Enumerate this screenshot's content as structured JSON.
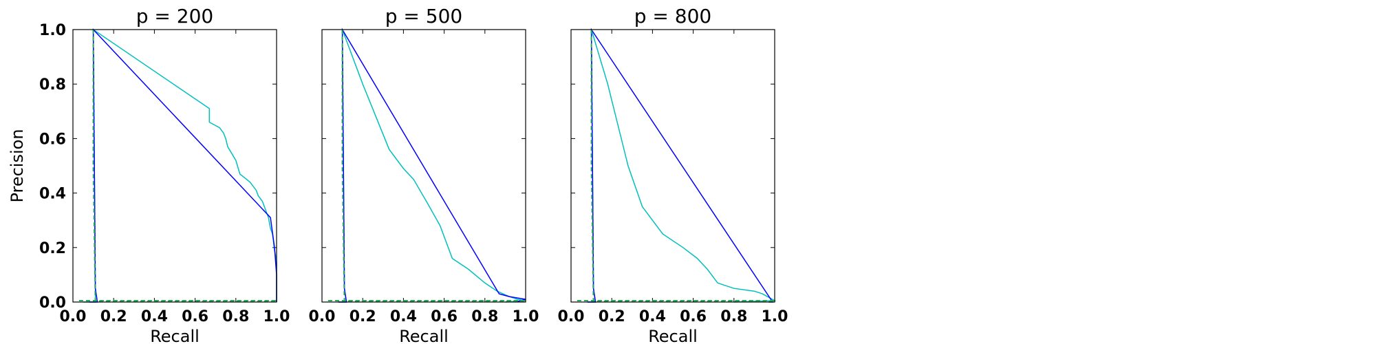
{
  "colors": {
    "cyan": "#00bfbf",
    "blue": "#0000ff",
    "dashed": "#22aa55"
  },
  "chart_data": [
    {
      "type": "line",
      "title": "p = 200",
      "xlabel": "Recall",
      "ylabel": "Precision",
      "xlim": [
        0,
        1
      ],
      "ylim": [
        0,
        1
      ],
      "xticks": [
        "0.0",
        "0.2",
        "0.4",
        "0.6",
        "0.8",
        "1.0"
      ],
      "yticks": [
        "0.0",
        "0.2",
        "0.4",
        "0.6",
        "0.8",
        "1.0"
      ],
      "grid": false,
      "series": [
        {
          "color": "cyan",
          "x": [
            0.05,
            0.11,
            0.11,
            0.1,
            0.67,
            0.67,
            0.72,
            0.74,
            0.75,
            0.76,
            0.8,
            0.82,
            0.87,
            0.9,
            0.91,
            0.93,
            0.95,
            0.96,
            0.97,
            0.98,
            0.99,
            1.0,
            1.0,
            1.0
          ],
          "y": [
            0.0,
            0.0,
            0.05,
            1.0,
            0.71,
            0.66,
            0.64,
            0.62,
            0.6,
            0.57,
            0.52,
            0.47,
            0.44,
            0.41,
            0.39,
            0.37,
            0.33,
            0.31,
            0.27,
            0.25,
            0.19,
            0.15,
            0.05,
            0.0
          ]
        },
        {
          "color": "blue",
          "x": [
            0.08,
            0.12,
            0.11,
            0.1,
            0.97,
            0.99,
            1.0,
            1.0
          ],
          "y": [
            0.0,
            0.0,
            0.05,
            1.0,
            0.31,
            0.2,
            0.1,
            0.0
          ]
        },
        {
          "color": "dashed",
          "dashed": true,
          "x": [
            0.03,
            1.0,
            1.0,
            0.11,
            0.1,
            0.1
          ],
          "y": [
            0.005,
            0.005,
            0.003,
            0.003,
            0.5,
            1.0
          ]
        }
      ]
    },
    {
      "type": "line",
      "title": "p = 500",
      "xlabel": "Recall",
      "xlim": [
        0,
        1
      ],
      "ylim": [
        0,
        1
      ],
      "xticks": [
        "0.0",
        "0.2",
        "0.4",
        "0.6",
        "0.8",
        "1.0"
      ],
      "grid": false,
      "series": [
        {
          "color": "cyan",
          "x": [
            0.08,
            0.12,
            0.11,
            0.1,
            0.2,
            0.33,
            0.4,
            0.45,
            0.52,
            0.58,
            0.64,
            0.72,
            0.8,
            0.86,
            0.92,
            0.96,
            1.0,
            0.9
          ],
          "y": [
            0.0,
            0.0,
            0.05,
            1.0,
            0.8,
            0.56,
            0.49,
            0.45,
            0.36,
            0.28,
            0.16,
            0.12,
            0.07,
            0.04,
            0.02,
            0.01,
            0.005,
            0.0
          ]
        },
        {
          "color": "blue",
          "x": [
            0.08,
            0.12,
            0.11,
            0.1,
            0.87,
            0.92,
            1.0,
            0.95
          ],
          "y": [
            0.0,
            0.0,
            0.05,
            1.0,
            0.03,
            0.02,
            0.01,
            0.0
          ]
        },
        {
          "color": "dashed",
          "dashed": true,
          "x": [
            0.03,
            1.0,
            1.0,
            0.11,
            0.1,
            0.1
          ],
          "y": [
            0.005,
            0.005,
            0.003,
            0.003,
            0.5,
            1.0
          ]
        }
      ]
    },
    {
      "type": "line",
      "title": "p = 800",
      "xlabel": "Recall",
      "xlim": [
        0,
        1
      ],
      "ylim": [
        0,
        1
      ],
      "xticks": [
        "0.0",
        "0.2",
        "0.4",
        "0.6",
        "0.8",
        "1.0"
      ],
      "grid": false,
      "series": [
        {
          "color": "cyan",
          "x": [
            0.08,
            0.12,
            0.11,
            0.1,
            0.18,
            0.28,
            0.35,
            0.45,
            0.55,
            0.62,
            0.67,
            0.72,
            0.8,
            0.9,
            0.94,
            1.0,
            0.8
          ],
          "y": [
            0.0,
            0.0,
            0.05,
            1.0,
            0.8,
            0.5,
            0.35,
            0.25,
            0.2,
            0.16,
            0.12,
            0.07,
            0.05,
            0.04,
            0.03,
            0.005,
            0.0
          ]
        },
        {
          "color": "blue",
          "x": [
            0.08,
            0.12,
            0.11,
            0.1,
            0.99,
            0.97
          ],
          "y": [
            0.0,
            0.0,
            0.05,
            1.0,
            0.0,
            0.0
          ]
        },
        {
          "color": "dashed",
          "dashed": true,
          "x": [
            0.03,
            1.0,
            1.0,
            0.11,
            0.1,
            0.1
          ],
          "y": [
            0.005,
            0.005,
            0.003,
            0.003,
            0.5,
            1.0
          ]
        }
      ]
    }
  ]
}
